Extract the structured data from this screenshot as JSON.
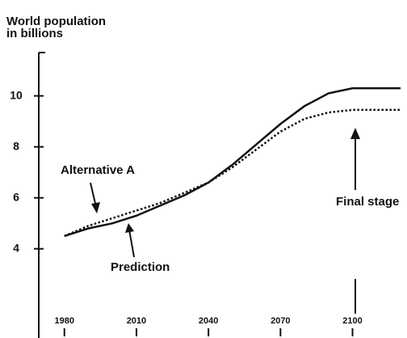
{
  "chart_data": {
    "type": "line",
    "title": "World population",
    "ylabel": "in billions",
    "x": [
      1980,
      1990,
      2000,
      2010,
      2020,
      2030,
      2040,
      2050,
      2060,
      2070,
      2080,
      2090,
      2100,
      2110,
      2120
    ],
    "series": [
      {
        "name": "Prediction",
        "color": "#111111",
        "dash": false,
        "values": [
          4.5,
          4.8,
          5.0,
          5.3,
          5.7,
          6.1,
          6.6,
          7.3,
          8.1,
          8.9,
          9.6,
          10.1,
          10.3,
          10.3,
          10.3
        ]
      },
      {
        "name": "Alternative A",
        "color": "#111111",
        "dash": true,
        "values": [
          4.5,
          4.9,
          5.2,
          5.5,
          5.8,
          6.2,
          6.6,
          7.2,
          7.9,
          8.6,
          9.1,
          9.35,
          9.45,
          9.45,
          9.45
        ]
      }
    ],
    "annotations": [
      "Final stage"
    ],
    "xlim": [
      1970,
      2120
    ],
    "xticks": [
      1980,
      2010,
      2040,
      2070,
      2100
    ],
    "ylim": [
      0.5,
      11.7
    ],
    "yticks": [
      4,
      6,
      8,
      10
    ]
  }
}
